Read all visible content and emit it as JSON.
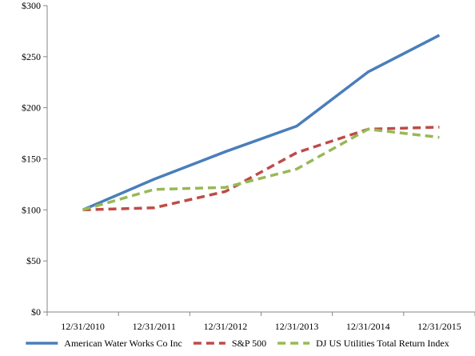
{
  "chart_data": {
    "type": "line",
    "title": "",
    "xlabel": "",
    "ylabel": "",
    "categories": [
      "12/31/2010",
      "12/31/2011",
      "12/31/2012",
      "12/31/2013",
      "12/31/2014",
      "12/31/2015"
    ],
    "ylim": [
      0,
      300
    ],
    "y_ticks": [
      "$0",
      "$50",
      "$100",
      "$150",
      "$200",
      "$250",
      "$300"
    ],
    "y_tick_values": [
      0,
      50,
      100,
      150,
      200,
      250,
      300
    ],
    "grid": false,
    "legend_position": "bottom",
    "series": [
      {
        "name": "American Water Works Co Inc",
        "values": [
          100,
          130,
          157,
          182,
          235,
          271
        ],
        "color": "#4a7ebb",
        "style": "solid"
      },
      {
        "name": "S&P 500",
        "values": [
          100,
          102,
          118,
          156,
          179,
          181
        ],
        "color": "#be4b48",
        "style": "dashed"
      },
      {
        "name": "DJ US Utilities Total Return Index",
        "values": [
          100,
          120,
          122,
          140,
          179,
          171
        ],
        "color": "#98b954",
        "style": "dashed"
      }
    ]
  }
}
